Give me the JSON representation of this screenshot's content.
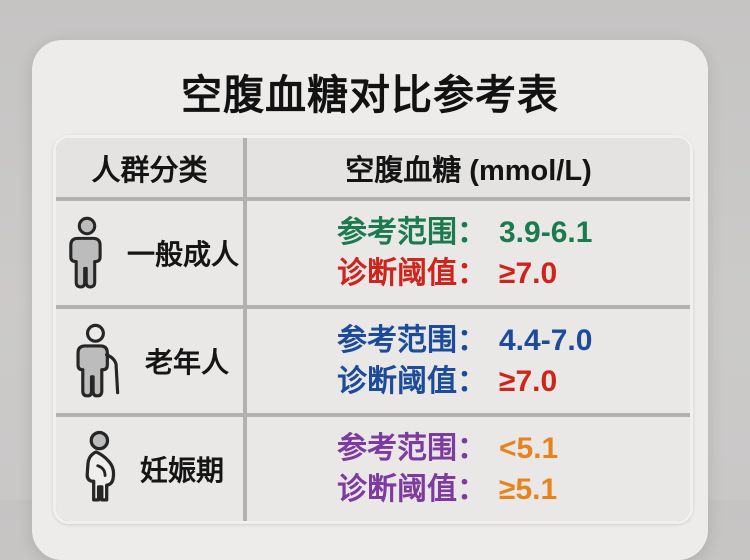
{
  "title": "空腹血糖对比参考表",
  "table": {
    "headers": [
      "人群分类",
      "空腹血糖 (mmol/L)"
    ],
    "rows": [
      {
        "category": "一般成人",
        "icon": "adult-person-icon",
        "lines": [
          {
            "label": "参考范围：",
            "value": "3.9-6.1",
            "label_color": "#1b7a4e",
            "value_color": "#1b7a4e"
          },
          {
            "label": "诊断阈值：",
            "value": "≥7.0",
            "label_color": "#cf241c",
            "value_color": "#cf241c"
          }
        ]
      },
      {
        "category": "老年人",
        "icon": "elderly-person-with-cane-icon",
        "lines": [
          {
            "label": "参考范围：",
            "value": "4.4-7.0",
            "label_color": "#1d4b9b",
            "value_color": "#1d4b9b"
          },
          {
            "label": "诊断阈值：",
            "value": "≥7.0",
            "label_color": "#1d4b9b",
            "value_color": "#cf241c"
          }
        ]
      },
      {
        "category": "妊娠期",
        "icon": "pregnant-woman-icon",
        "lines": [
          {
            "label": "参考范围：",
            "value": "<5.1",
            "label_color": "#7d3aa0",
            "value_color": "#e8821c"
          },
          {
            "label": "诊断阈值：",
            "value": "≥5.1",
            "label_color": "#7d3aa0",
            "value_color": "#e8821c"
          }
        ]
      }
    ]
  },
  "colors": {
    "reference_green": "#1b7a4e",
    "threshold_red": "#cf241c",
    "elderly_blue": "#1d4b9b",
    "pregnancy_purple": "#7d3aa0",
    "pregnancy_orange": "#e8821c",
    "card_background": "#edecea",
    "page_background": "#c9c8c7",
    "grid_line": "#b2b1b0"
  },
  "chart_data": {
    "type": "table",
    "title": "空腹血糖对比参考表",
    "unit": "mmol/L",
    "columns": [
      "人群分类",
      "空腹血糖 (mmol/L)"
    ],
    "rows": [
      {
        "group": "一般成人",
        "reference_range": "3.9-6.1",
        "diagnostic_threshold": "≥7.0"
      },
      {
        "group": "老年人",
        "reference_range": "4.4-7.0",
        "diagnostic_threshold": "≥7.0"
      },
      {
        "group": "妊娠期",
        "reference_range": "<5.1",
        "diagnostic_threshold": "≥5.1"
      }
    ]
  }
}
